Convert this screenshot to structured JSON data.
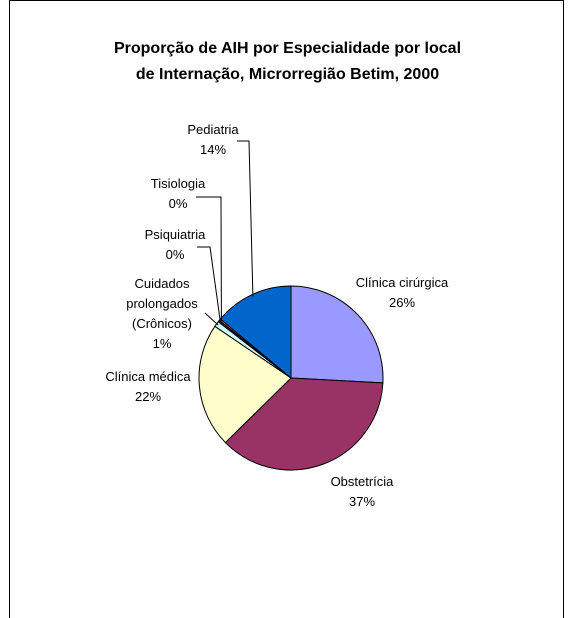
{
  "chart_data": {
    "type": "pie",
    "title_lines": [
      "Proporção de AIH por Especialidade por local",
      "de Internação, Microrregião Betim, 2000"
    ],
    "slices": [
      {
        "name": "Clínica cirúrgica",
        "value": 26,
        "label": "26%",
        "color": "#9999FF"
      },
      {
        "name": "Obstetrícia",
        "value": 37,
        "label": "37%",
        "color": "#993366"
      },
      {
        "name": "Clínica médica",
        "value": 22,
        "label": "22%",
        "color": "#FFFFCC"
      },
      {
        "name_lines": [
          "Cuidados",
          "prolongados",
          "(Crônicos)"
        ],
        "value": 1,
        "label": "1%",
        "color": "#CCFFFF"
      },
      {
        "name": "Psiquiatria",
        "value": 0.3,
        "label": "0%",
        "color": "#660066"
      },
      {
        "name": "Tisiologia",
        "value": 0.3,
        "label": "0%",
        "color": "#FF8080"
      },
      {
        "name": "Pediatria",
        "value": 14,
        "label": "14%",
        "color": "#0066CC"
      }
    ]
  }
}
